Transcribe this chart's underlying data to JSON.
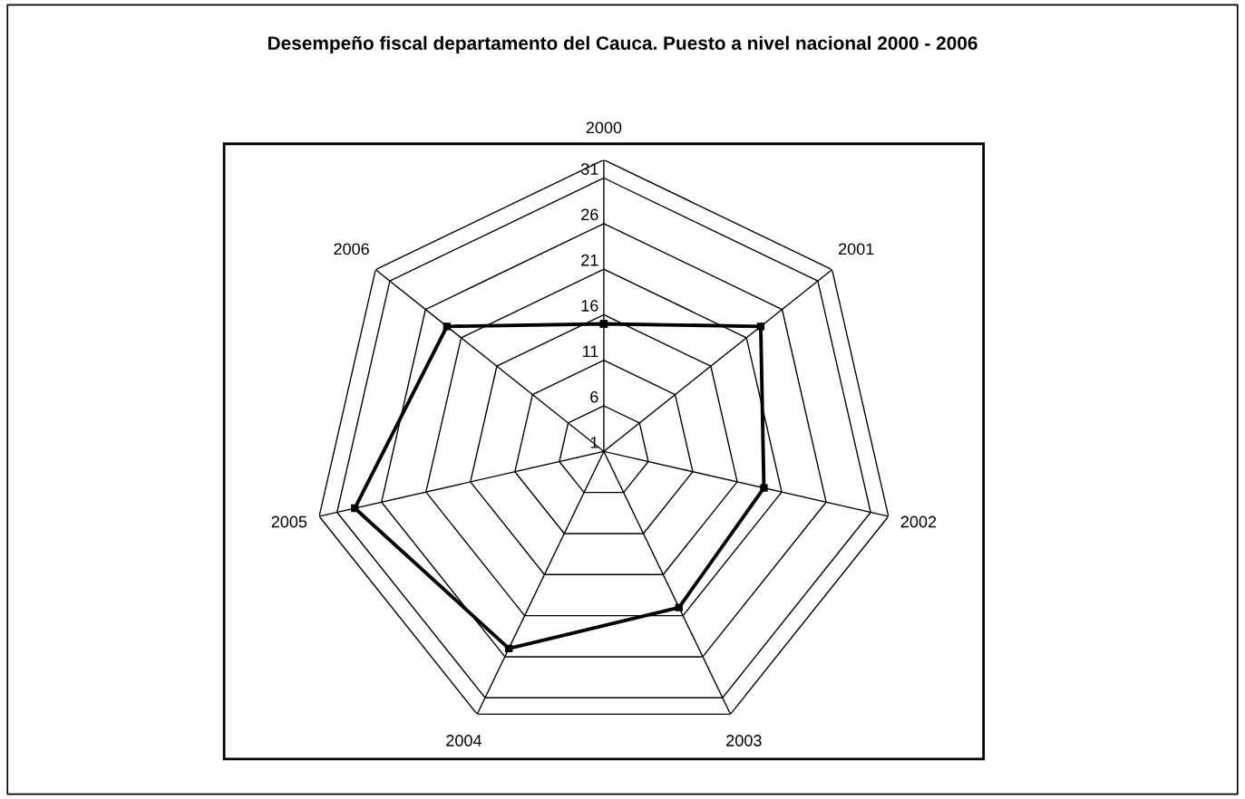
{
  "chart_data": {
    "type": "radar",
    "title": "Desempeño fiscal departamento del Cauca. Puesto a nivel nacional 2000 - 2006",
    "categories": [
      "2000",
      "2001",
      "2002",
      "2003",
      "2004",
      "2005",
      "2006"
    ],
    "series": [
      {
        "color": "#000000",
        "values": [
          15,
          23,
          19,
          20,
          25,
          29,
          23
        ]
      }
    ],
    "ylim": [
      1,
      33
    ],
    "yticks": [
      1,
      6,
      11,
      16,
      21,
      26,
      31
    ],
    "grid": true,
    "marker": "square",
    "line_style": "solid"
  }
}
